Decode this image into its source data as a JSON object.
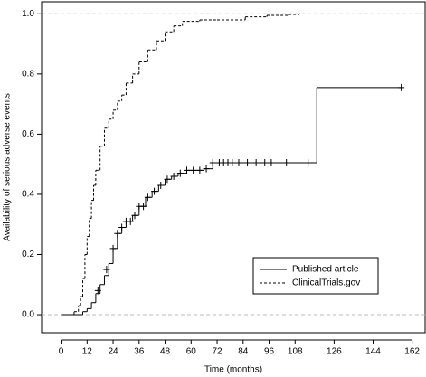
{
  "chart_data": {
    "type": "step",
    "x_label": "Time (months)",
    "y_label": "Availability of serious adverse events",
    "xlim": [
      -9,
      168
    ],
    "ylim": [
      -0.06,
      1.04
    ],
    "xticks": [
      0,
      12,
      24,
      36,
      48,
      60,
      72,
      84,
      96,
      108,
      126,
      144,
      162
    ],
    "yticks": [
      {
        "value": 0,
        "label": "0.0"
      },
      {
        "value": 0.2,
        "label": "0.2"
      },
      {
        "value": 0.4,
        "label": "0.4"
      },
      {
        "value": 0.6,
        "label": "0.6"
      },
      {
        "value": 0.8,
        "label": "0.8"
      },
      {
        "value": 1,
        "label": "1.0"
      }
    ],
    "reference_lines": [
      0,
      1
    ],
    "legend": "bottom-right",
    "series": [
      {
        "name": "Published article",
        "color": "#000000",
        "dash": false,
        "x": [
          0,
          10,
          12,
          14,
          16,
          18,
          20,
          22,
          24,
          26,
          28,
          30,
          33,
          36,
          39,
          42,
          45,
          48,
          51,
          54,
          58,
          66,
          70,
          118,
          157
        ],
        "values": [
          0,
          0.01,
          0.02,
          0.04,
          0.07,
          0.1,
          0.13,
          0.17,
          0.22,
          0.27,
          0.29,
          0.31,
          0.33,
          0.36,
          0.39,
          0.41,
          0.43,
          0.45,
          0.46,
          0.47,
          0.48,
          0.485,
          0.505,
          0.755,
          0.755
        ],
        "censor": {
          "x": [
            17,
            21,
            24,
            26,
            28,
            30,
            32,
            34,
            36,
            38,
            40,
            43,
            46,
            49,
            52,
            55,
            58,
            61,
            64,
            67,
            70,
            73,
            75,
            77,
            79,
            82,
            86,
            90,
            94,
            97,
            104,
            114,
            157
          ],
          "values": [
            0.08,
            0.15,
            0.22,
            0.27,
            0.29,
            0.31,
            0.31,
            0.33,
            0.36,
            0.36,
            0.39,
            0.41,
            0.43,
            0.45,
            0.46,
            0.47,
            0.48,
            0.48,
            0.48,
            0.485,
            0.505,
            0.505,
            0.505,
            0.505,
            0.505,
            0.505,
            0.505,
            0.505,
            0.505,
            0.505,
            0.505,
            0.505,
            0.755
          ]
        }
      },
      {
        "name": "ClinicalTrials.gov",
        "color": "#000000",
        "dash": true,
        "x": [
          0,
          6,
          8,
          9,
          10,
          11,
          12,
          13,
          14,
          15,
          16,
          18,
          20,
          22,
          24,
          26,
          28,
          30,
          33,
          36,
          40,
          44,
          48,
          52,
          56,
          64,
          72,
          85,
          95,
          105,
          110
        ],
        "values": [
          0,
          0.01,
          0.03,
          0.06,
          0.12,
          0.2,
          0.26,
          0.32,
          0.38,
          0.43,
          0.48,
          0.56,
          0.62,
          0.65,
          0.68,
          0.71,
          0.73,
          0.77,
          0.8,
          0.84,
          0.88,
          0.91,
          0.94,
          0.96,
          0.975,
          0.98,
          0.98,
          0.99,
          0.995,
          0.998,
          1.0
        ]
      }
    ]
  }
}
